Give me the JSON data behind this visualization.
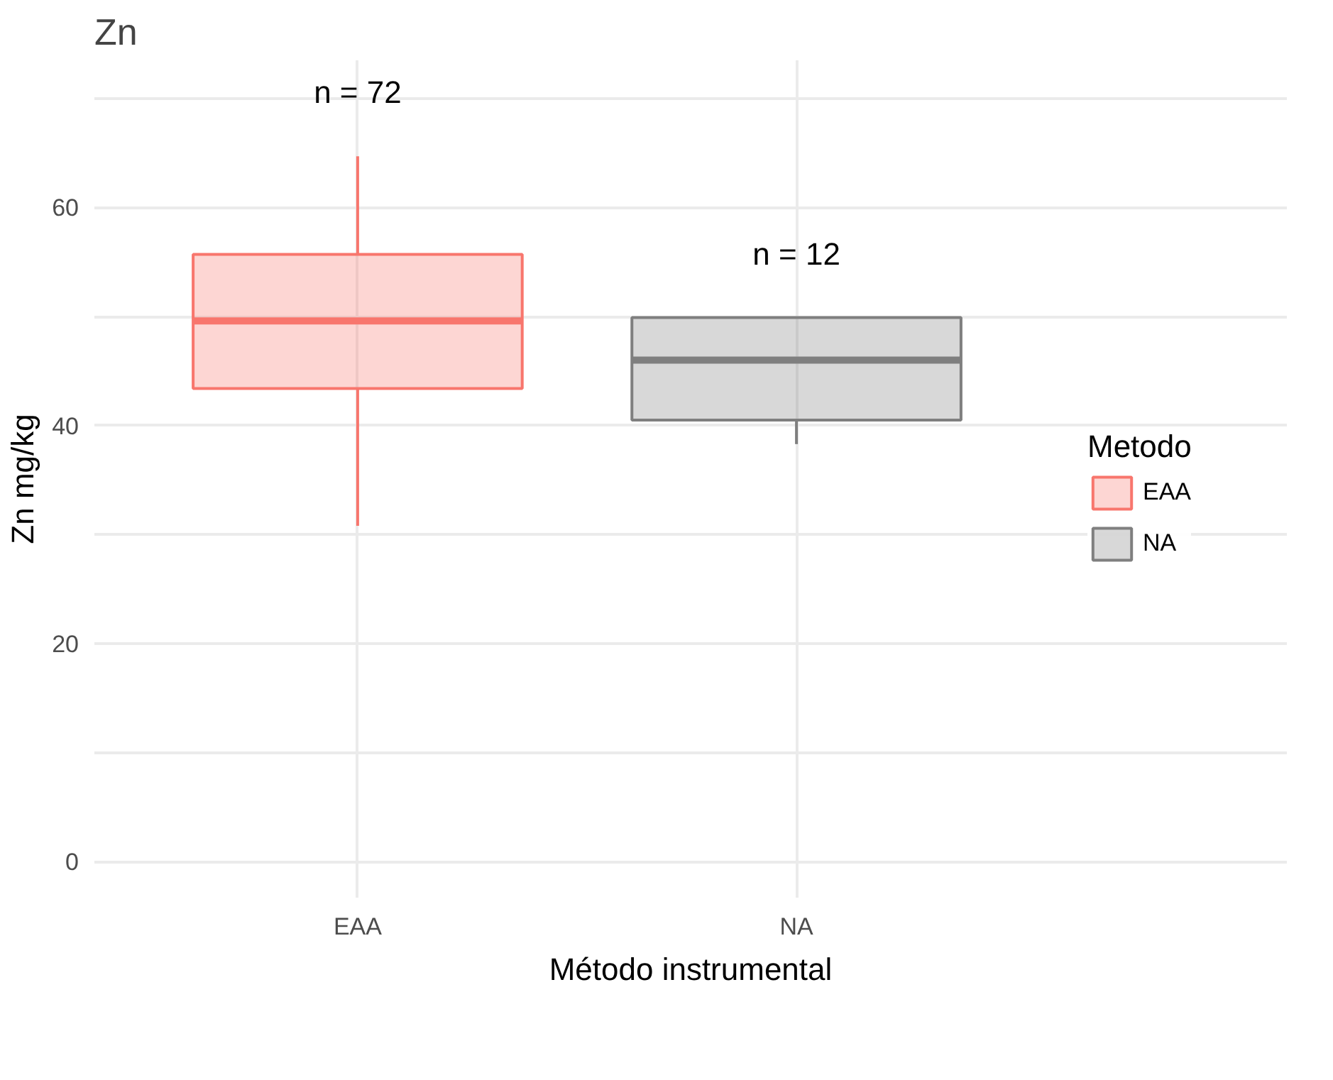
{
  "chart_data": {
    "type": "box",
    "title": "Zn",
    "xlabel": "Método instrumental",
    "ylabel": "Zn mg/kg",
    "legend_title": "Metodo",
    "legend": "right",
    "grid": true,
    "categories": [
      "EAA",
      "NA"
    ],
    "ylim": [
      -3.3,
      73.5
    ],
    "yticks": [
      0,
      {
        "value": 10,
        "label": null
      },
      20,
      {
        "value": 30,
        "label": null
      },
      40,
      {
        "value": 50,
        "label": null
      },
      60,
      {
        "value": 70,
        "label": null
      }
    ],
    "series": [
      {
        "name": "EAA",
        "color": "#f8766d",
        "boxes": [
          {
            "low": 30.8,
            "q1": 43.4,
            "median": 49.6,
            "q3": 55.7,
            "high": 64.7
          },
          null
        ]
      },
      {
        "name": "NA",
        "color": "#7f7f7f",
        "boxes": [
          null,
          {
            "low": 38.3,
            "q1": 40.5,
            "median": 46.0,
            "q3": 49.9,
            "high": 49.9
          }
        ]
      }
    ],
    "annotations": [
      "n = 72",
      "n = 12"
    ]
  }
}
